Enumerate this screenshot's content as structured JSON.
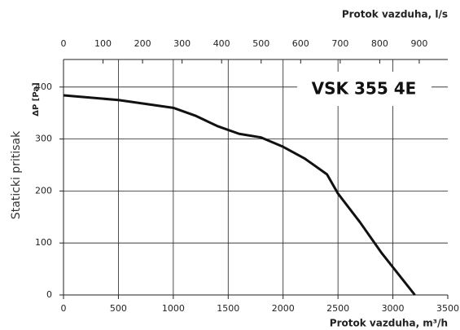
{
  "chart_data": {
    "type": "line",
    "x_label": "Protok vazduha, m³/h",
    "x2_label": "Protok vazduha, l/s",
    "y_label": "Staticki pritisak",
    "y_unit_label": "ΔP [Pa]",
    "annotation": "VSK 355 4E",
    "series": [
      {
        "name": "VSK 355 4E",
        "color": "#111111",
        "x": [
          0,
          500,
          1000,
          1200,
          1400,
          1600,
          1800,
          2000,
          2200,
          2400,
          2500,
          2700,
          2900,
          3200
        ],
        "values": [
          384,
          375,
          360,
          345,
          325,
          310,
          303,
          285,
          262,
          232,
          195,
          140,
          80,
          0
        ]
      }
    ],
    "xlim": [
      0,
      3500
    ],
    "xticks": [
      0,
      500,
      1000,
      1500,
      2000,
      2500,
      3000,
      3500
    ],
    "x2lim": [
      0,
      972.2
    ],
    "x2ticks": [
      0,
      100,
      200,
      300,
      400,
      500,
      600,
      700,
      800,
      900
    ],
    "ylim": [
      0,
      453
    ],
    "yticks": [
      0,
      100,
      200,
      300,
      400
    ],
    "grid": true
  }
}
